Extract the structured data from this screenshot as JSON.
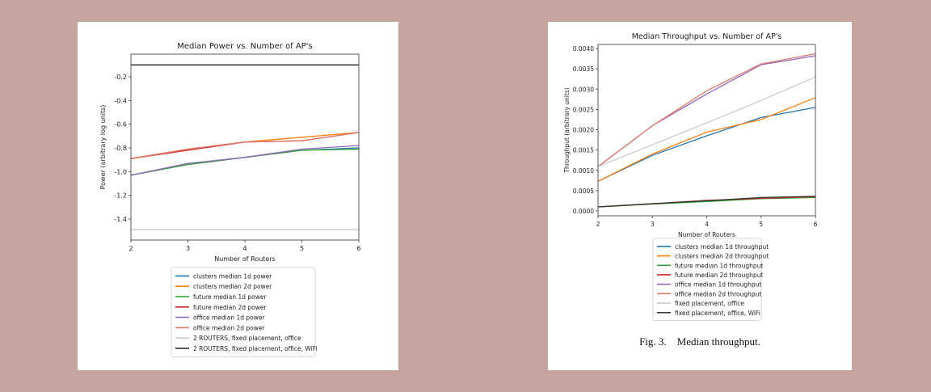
{
  "chart_data": [
    {
      "type": "line",
      "title": "Median Power vs. Number of AP's",
      "xlabel": "Number of Routers",
      "ylabel": "Power (arbitrary log units)",
      "xlim": [
        2,
        6
      ],
      "ylim": [
        -1.5,
        -0.1
      ],
      "x": [
        2,
        3,
        4,
        5,
        6
      ],
      "xticks": [
        "2",
        "3",
        "4",
        "5",
        "6"
      ],
      "yticks": [
        "-0.2",
        "-0.4",
        "-0.6",
        "-0.8",
        "-1.0",
        "-1.2",
        "-1.4"
      ],
      "ytick_values": [
        -0.2,
        -0.4,
        -0.6,
        -0.8,
        -1.0,
        -1.2,
        -1.4
      ],
      "grid": false,
      "legend_position": "below",
      "series": [
        {
          "name": "clusters median 1d power",
          "color": "#1f77b4",
          "values": [
            -1.03,
            -0.94,
            -0.88,
            -0.82,
            -0.8
          ]
        },
        {
          "name": "clusters median 2d power",
          "color": "#ff7f0e",
          "values": [
            -0.89,
            -0.81,
            -0.75,
            -0.71,
            -0.67
          ]
        },
        {
          "name": "future median 1d power",
          "color": "#2ca02c",
          "values": [
            -1.03,
            -0.94,
            -0.88,
            -0.82,
            -0.81
          ]
        },
        {
          "name": "future median 2d power",
          "color": "#d62728",
          "values": [
            -0.89,
            -0.82,
            -0.75,
            -0.74,
            -0.67
          ]
        },
        {
          "name": "office median 1d power",
          "color": "#9467bd",
          "values": [
            -1.03,
            -0.93,
            -0.88,
            -0.81,
            -0.78
          ]
        },
        {
          "name": "office median 2d power",
          "color": "#e07a6a",
          "values": [
            -0.89,
            -0.81,
            -0.75,
            -0.74,
            -0.67
          ]
        },
        {
          "name": "2 ROUTERS, fixed placement, office",
          "color": "#cccccc",
          "values": [
            -1.49,
            -1.49,
            -1.49,
            -1.49,
            -1.49
          ]
        },
        {
          "name": "2 ROUTERS, fixed placement, office, WiFi",
          "color": "#222222",
          "values": [
            -0.1,
            -0.1,
            -0.1,
            -0.1,
            -0.1
          ]
        }
      ]
    },
    {
      "type": "line",
      "title": "Median Throughput vs. Number of AP's",
      "xlabel": "Number of Routers",
      "ylabel": "Throughput (arbitrary units)",
      "xlim": [
        2,
        6
      ],
      "ylim": [
        0,
        0.004
      ],
      "x": [
        2,
        3,
        4,
        5,
        6
      ],
      "xticks": [
        "2",
        "3",
        "4",
        "5",
        "6"
      ],
      "yticks": [
        "0.0000",
        "0.0005",
        "0.0010",
        "0.0015",
        "0.0020",
        "0.0025",
        "0.0030",
        "0.0035",
        "0.0040"
      ],
      "ytick_values": [
        0,
        0.0005,
        0.001,
        0.0015,
        0.002,
        0.0025,
        0.003,
        0.0035,
        0.004
      ],
      "grid": false,
      "legend_position": "below",
      "caption": "Fig. 3. Median throughput.",
      "series": [
        {
          "name": "clusters median 1d throughput",
          "color": "#1f77b4",
          "values": [
            0.00073,
            0.00137,
            0.00185,
            0.0023,
            0.00255
          ]
        },
        {
          "name": "clusters median 2d throughput",
          "color": "#ff7f0e",
          "values": [
            0.00073,
            0.0014,
            0.00194,
            0.00225,
            0.00279
          ]
        },
        {
          "name": "future median 1d throughput",
          "color": "#2ca02c",
          "values": [
            0.0001,
            0.00017,
            0.00023,
            0.0003,
            0.00033
          ]
        },
        {
          "name": "future median 2d throughput",
          "color": "#d62728",
          "values": [
            0.0001,
            0.00018,
            0.00026,
            0.00031,
            0.00035
          ]
        },
        {
          "name": "office median 1d throughput",
          "color": "#9467bd",
          "values": [
            0.00109,
            0.0021,
            0.00288,
            0.0036,
            0.00382
          ]
        },
        {
          "name": "office median 2d throughput",
          "color": "#e07a6a",
          "values": [
            0.00109,
            0.0021,
            0.00296,
            0.00362,
            0.00387
          ]
        },
        {
          "name": "fixed placement, office",
          "color": "#cccccc",
          "values": [
            0.00109,
            0.00163,
            0.00217,
            0.00272,
            0.0033
          ]
        },
        {
          "name": "fixed placement, office, WiFi",
          "color": "#333333",
          "values": [
            0.0001,
            0.00018,
            0.00025,
            0.00033,
            0.00036
          ]
        }
      ]
    }
  ]
}
